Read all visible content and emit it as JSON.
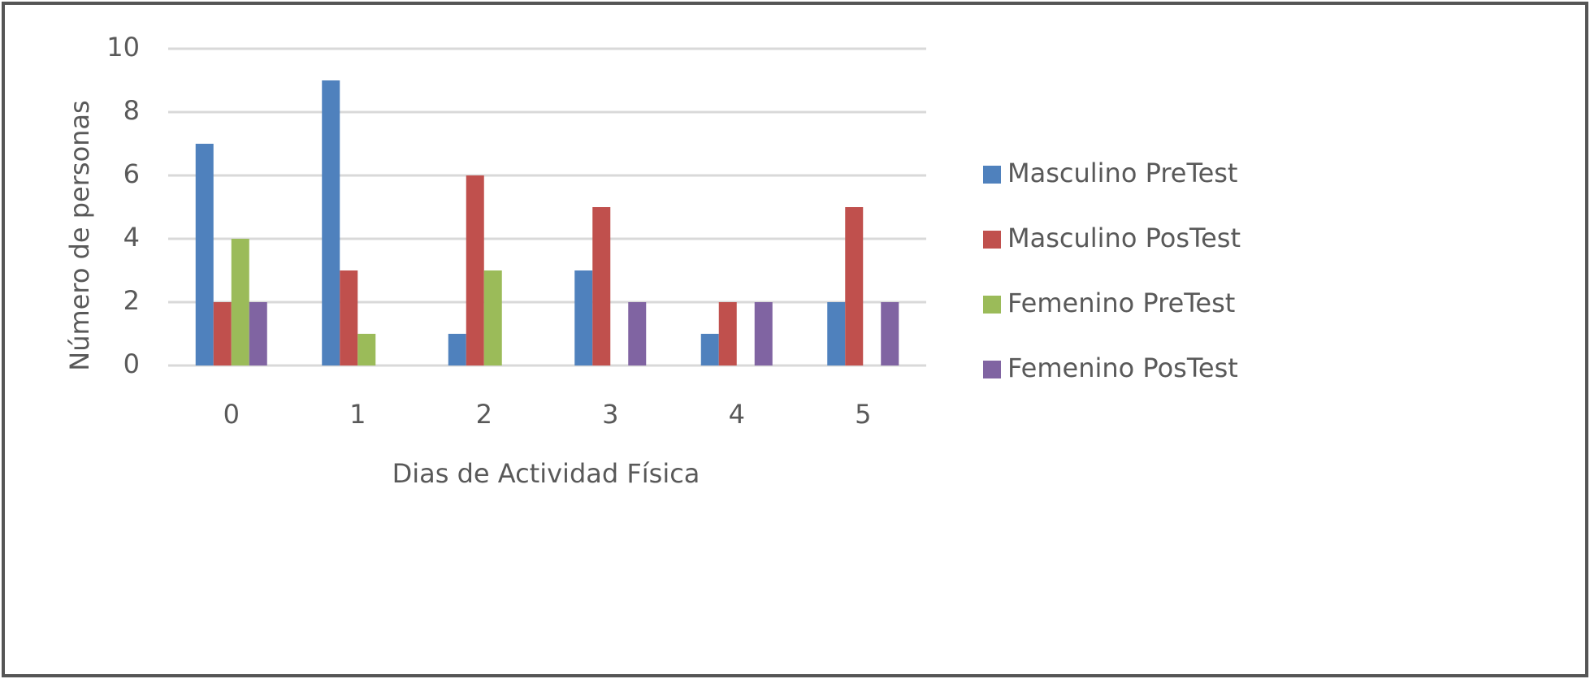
{
  "chart_data": {
    "type": "bar",
    "x_label": "Dias de Actividad Física",
    "y_label": "Número de personas",
    "categories": [
      "0",
      "1",
      "2",
      "3",
      "4",
      "5"
    ],
    "series": [
      {
        "name": "Masculino PreTest",
        "color": "#4f81bd",
        "values": [
          7,
          9,
          1,
          3,
          1,
          2
        ]
      },
      {
        "name": "Masculino PosTest",
        "color": "#c0504d",
        "values": [
          2,
          3,
          6,
          5,
          2,
          5
        ]
      },
      {
        "name": "Femenino PreTest",
        "color": "#9bbb59",
        "values": [
          4,
          1,
          3,
          0,
          0,
          0
        ]
      },
      {
        "name": "Femenino PosTest",
        "color": "#8064a2",
        "values": [
          2,
          0,
          0,
          2,
          2,
          2
        ]
      }
    ],
    "ylim": [
      0,
      10
    ],
    "yticks": [
      0,
      2,
      4,
      6,
      8,
      10
    ],
    "grid": true,
    "legend": "right"
  }
}
